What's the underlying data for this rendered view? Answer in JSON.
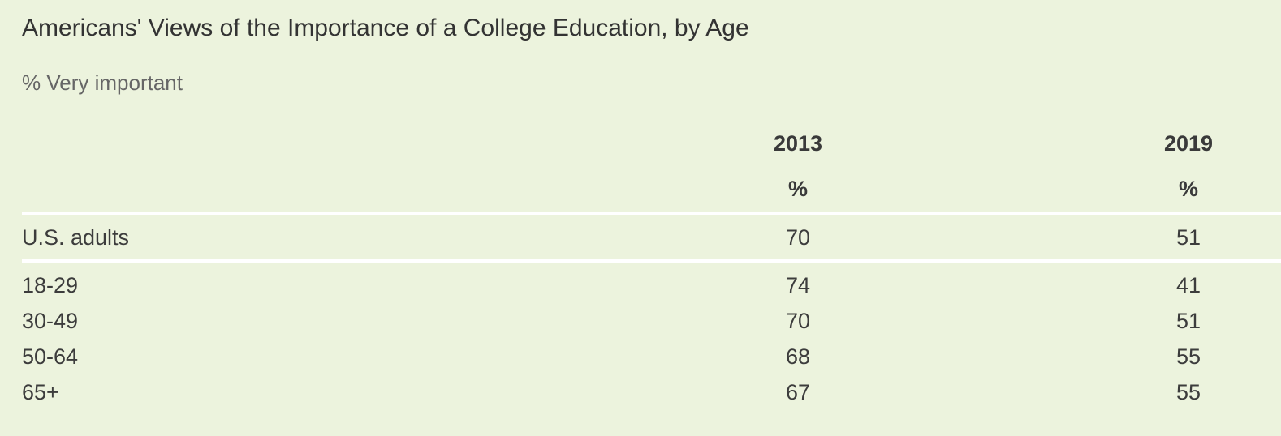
{
  "chart_data": {
    "type": "table",
    "title": "Americans' Views of the Importance of a College Education, by Age",
    "subtitle": "% Very important",
    "columns": [
      "2013",
      "2019"
    ],
    "column_units": [
      "%",
      "%"
    ],
    "total_row": {
      "label": "U.S. adults",
      "values": [
        "70",
        "51"
      ]
    },
    "rows": [
      {
        "label": "18-29",
        "values": [
          "74",
          "41"
        ]
      },
      {
        "label": "30-49",
        "values": [
          "70",
          "51"
        ]
      },
      {
        "label": "50-64",
        "values": [
          "68",
          "55"
        ]
      },
      {
        "label": "65+",
        "values": [
          "67",
          "55"
        ]
      }
    ]
  }
}
